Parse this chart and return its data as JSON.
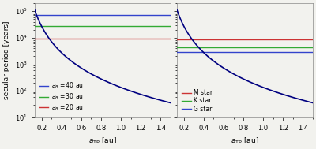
{
  "xlim": [
    0.13,
    1.5
  ],
  "ylim_log": [
    10,
    200000.0
  ],
  "xlabel": "$a_{\\mathrm{TP}}$ [au]",
  "ylabel": "secular period [years]",
  "left_hlines": [
    {
      "value": 70000,
      "color": "#3344cc",
      "label": "$a_B = 40$ au"
    },
    {
      "value": 28000,
      "color": "#33aa33",
      "label": "$a_B = 30$ au"
    },
    {
      "value": 9000,
      "color": "#cc3333",
      "label": "$a_B = 20$ au"
    }
  ],
  "right_hlines": [
    {
      "value": 8500,
      "color": "#cc3333",
      "label": "M star"
    },
    {
      "value": 4500,
      "color": "#33aa33",
      "label": "K star"
    },
    {
      "value": 2800,
      "color": "#3344cc",
      "label": "G star"
    }
  ],
  "curve_color": "#000080",
  "curve_scale": 1500.0,
  "curve_power": 3.5,
  "bg_color": "#f2f2ee"
}
